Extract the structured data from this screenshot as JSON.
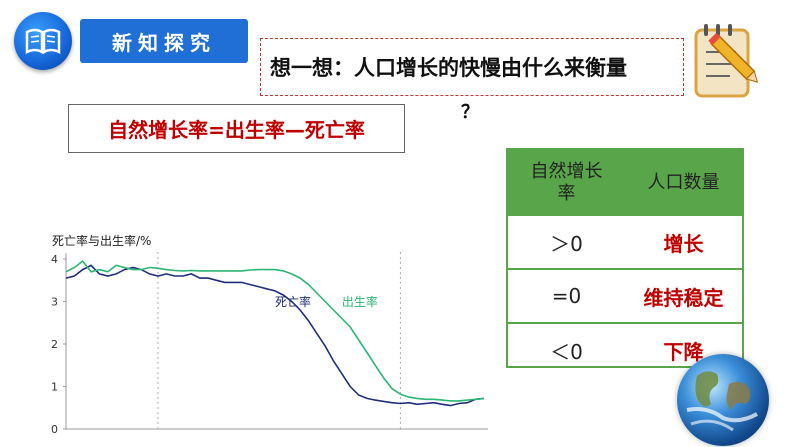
{
  "header": {
    "title": "新知探究",
    "icon": "book-icon",
    "accent": "#1f6fd6"
  },
  "question": {
    "text": "想一想：人口增长的快慢由什么来衡量",
    "mark": "？",
    "icon": "notepad-pencil-icon"
  },
  "formula": "自然增长率=出生率—死亡率",
  "table": {
    "headers": [
      "自然增长率",
      "人口数量"
    ],
    "rows": [
      {
        "condition": "＞0",
        "result": "增长"
      },
      {
        "condition": "=0",
        "result": "维持稳定"
      },
      {
        "condition": "＜0",
        "result": "下降"
      }
    ],
    "header_color": "#59a549",
    "result_color": "#c00000"
  },
  "chart_data": {
    "type": "line",
    "ylabel": "死亡率与出生率/%",
    "ylim": [
      0,
      4
    ],
    "yticks": [
      "0",
      "1",
      "2",
      "3",
      "4"
    ],
    "series": [
      {
        "name": "死亡率",
        "color": "#1f2f7a",
        "x": [
          0,
          2,
          4,
          5,
          6,
          8,
          10,
          12,
          14,
          16,
          18,
          20,
          22,
          24,
          26,
          28,
          30,
          32,
          34,
          36,
          38,
          40,
          42,
          44,
          46,
          48,
          50,
          52,
          54,
          56,
          58,
          60,
          62,
          64,
          66,
          68,
          70,
          72,
          74,
          76,
          78,
          80,
          82,
          84,
          86,
          88,
          90,
          92,
          94,
          96,
          98,
          100
        ],
        "values": [
          3.55,
          3.6,
          3.75,
          3.8,
          3.85,
          3.65,
          3.6,
          3.65,
          3.75,
          3.8,
          3.75,
          3.65,
          3.6,
          3.65,
          3.6,
          3.6,
          3.65,
          3.55,
          3.55,
          3.5,
          3.45,
          3.45,
          3.45,
          3.4,
          3.35,
          3.3,
          3.25,
          3.15,
          3.0,
          2.8,
          2.55,
          2.25,
          1.95,
          1.6,
          1.3,
          1.0,
          0.8,
          0.72,
          0.68,
          0.65,
          0.62,
          0.6,
          0.62,
          0.58,
          0.6,
          0.62,
          0.58,
          0.55,
          0.6,
          0.62,
          0.7,
          0.72
        ]
      },
      {
        "name": "出生率",
        "color": "#2bb673",
        "x": [
          0,
          2,
          4,
          6,
          8,
          10,
          12,
          14,
          16,
          18,
          20,
          22,
          24,
          26,
          28,
          30,
          32,
          34,
          36,
          38,
          40,
          42,
          44,
          46,
          48,
          50,
          52,
          54,
          56,
          58,
          60,
          62,
          64,
          66,
          68,
          70,
          72,
          74,
          76,
          78,
          80,
          82,
          84,
          86,
          88,
          90,
          92,
          94,
          96,
          98,
          100
        ],
        "values": [
          3.7,
          3.8,
          3.95,
          3.7,
          3.75,
          3.7,
          3.85,
          3.8,
          3.75,
          3.75,
          3.8,
          3.78,
          3.75,
          3.73,
          3.72,
          3.73,
          3.72,
          3.72,
          3.72,
          3.72,
          3.72,
          3.72,
          3.74,
          3.75,
          3.75,
          3.75,
          3.72,
          3.65,
          3.55,
          3.4,
          3.2,
          3.0,
          2.8,
          2.6,
          2.4,
          2.1,
          1.8,
          1.5,
          1.2,
          0.95,
          0.82,
          0.75,
          0.72,
          0.7,
          0.7,
          0.68,
          0.66,
          0.66,
          0.68,
          0.7,
          0.72
        ]
      }
    ],
    "grid": false,
    "dividers": [
      22,
      80
    ]
  }
}
